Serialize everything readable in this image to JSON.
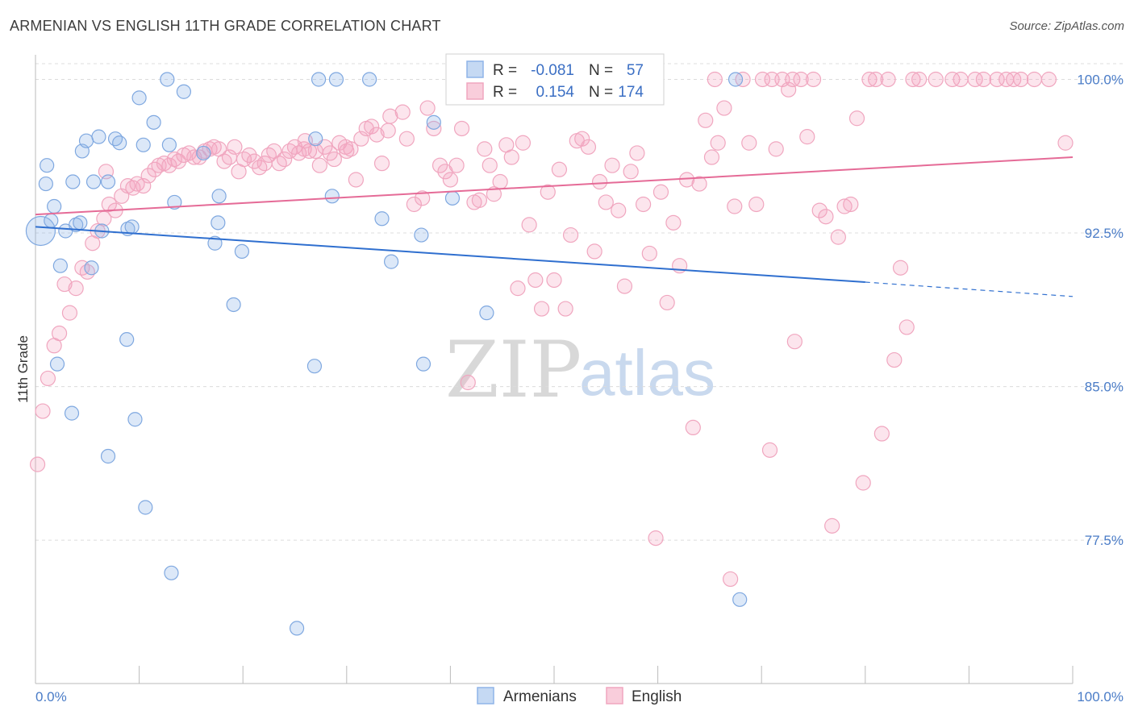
{
  "header": {
    "title": "ARMENIAN VS ENGLISH 11TH GRADE CORRELATION CHART",
    "source": "Source: ZipAtlas.com"
  },
  "watermark": {
    "zip": "ZIP",
    "atlas": "atlas"
  },
  "legend": {
    "r_label": "R =",
    "n_label": "N =",
    "rows": [
      {
        "series": "Armenians",
        "r": "-0.081",
        "n": "57",
        "color": "#8fb4e8"
      },
      {
        "series": "English",
        "r": "0.154",
        "n": "174",
        "color": "#f0a6bf"
      }
    ]
  },
  "bottom_legend": [
    {
      "label": "Armenians",
      "color": "#8fb4e8"
    },
    {
      "label": "English",
      "color": "#f0a6bf"
    }
  ],
  "chart_data": {
    "type": "scatter",
    "title": "ARMENIAN VS ENGLISH 11TH GRADE CORRELATION CHART",
    "xlabel": "",
    "ylabel": "11th Grade",
    "xlim": [
      0,
      100
    ],
    "ylim": [
      70.5,
      101.2
    ],
    "x_tick_labels": [
      "0.0%",
      "100.0%"
    ],
    "y_ticks": [
      77.5,
      85.0,
      92.5,
      100.0
    ],
    "y_tick_labels": [
      "77.5%",
      "85.0%",
      "92.5%",
      "100.0%"
    ],
    "grid": true,
    "series": [
      {
        "name": "Armenians",
        "color": "#6f9fe0",
        "trend": {
          "x0": 0,
          "y0": 92.8,
          "x1": 80,
          "y1": 90.1,
          "dash_to_x": 100,
          "dash_to_y": 89.4
        },
        "points": [
          [
            0.5,
            92.6
          ],
          [
            1.0,
            94.9
          ],
          [
            1.1,
            95.8
          ],
          [
            1.5,
            93.1
          ],
          [
            1.8,
            93.8
          ],
          [
            2.1,
            86.1
          ],
          [
            2.4,
            90.9
          ],
          [
            2.9,
            92.6
          ],
          [
            3.5,
            83.7
          ],
          [
            3.6,
            95.0
          ],
          [
            3.9,
            92.9
          ],
          [
            4.3,
            93.0
          ],
          [
            4.5,
            96.5
          ],
          [
            4.9,
            97.0
          ],
          [
            5.4,
            90.8
          ],
          [
            5.6,
            95.0
          ],
          [
            6.1,
            97.2
          ],
          [
            6.4,
            92.6
          ],
          [
            7.0,
            81.6
          ],
          [
            7.0,
            95.0
          ],
          [
            7.7,
            97.1
          ],
          [
            8.1,
            96.9
          ],
          [
            8.8,
            87.3
          ],
          [
            8.9,
            92.7
          ],
          [
            9.3,
            92.8
          ],
          [
            9.6,
            83.4
          ],
          [
            10.0,
            99.1
          ],
          [
            10.4,
            96.8
          ],
          [
            10.6,
            79.1
          ],
          [
            11.4,
            97.9
          ],
          [
            12.7,
            100.0
          ],
          [
            12.9,
            96.8
          ],
          [
            13.1,
            75.9
          ],
          [
            13.4,
            94.0
          ],
          [
            14.3,
            99.4
          ],
          [
            16.2,
            96.4
          ],
          [
            17.3,
            92.0
          ],
          [
            17.6,
            93.0
          ],
          [
            17.7,
            94.3
          ],
          [
            19.1,
            89.0
          ],
          [
            19.9,
            91.6
          ],
          [
            25.2,
            73.2
          ],
          [
            26.9,
            86.0
          ],
          [
            27.0,
            97.1
          ],
          [
            27.3,
            100.0
          ],
          [
            29.0,
            100.0
          ],
          [
            28.6,
            94.3
          ],
          [
            32.2,
            100.0
          ],
          [
            33.4,
            93.2
          ],
          [
            34.3,
            91.1
          ],
          [
            37.2,
            92.4
          ],
          [
            37.4,
            86.1
          ],
          [
            38.4,
            97.9
          ],
          [
            40.2,
            94.2
          ],
          [
            43.5,
            88.6
          ],
          [
            67.5,
            100.0
          ],
          [
            67.9,
            74.6
          ]
        ]
      },
      {
        "name": "English",
        "color": "#f08fb0",
        "trend": {
          "x0": 0,
          "y0": 93.4,
          "x1": 100,
          "y1": 96.2
        },
        "points": [
          [
            0.2,
            81.2
          ],
          [
            0.7,
            83.8
          ],
          [
            1.2,
            85.4
          ],
          [
            1.8,
            87.0
          ],
          [
            2.3,
            87.6
          ],
          [
            2.8,
            90.0
          ],
          [
            3.3,
            88.6
          ],
          [
            3.9,
            89.8
          ],
          [
            4.5,
            90.8
          ],
          [
            5.0,
            90.6
          ],
          [
            5.5,
            92.0
          ],
          [
            6.0,
            92.6
          ],
          [
            6.6,
            93.2
          ],
          [
            7.1,
            93.9
          ],
          [
            7.7,
            93.6
          ],
          [
            8.3,
            94.3
          ],
          [
            8.9,
            94.8
          ],
          [
            9.4,
            94.7
          ],
          [
            9.8,
            94.9
          ],
          [
            10.4,
            94.8
          ],
          [
            10.9,
            95.3
          ],
          [
            11.5,
            95.6
          ],
          [
            11.9,
            95.8
          ],
          [
            12.4,
            95.9
          ],
          [
            12.9,
            95.8
          ],
          [
            13.4,
            96.1
          ],
          [
            13.8,
            96.0
          ],
          [
            14.3,
            96.3
          ],
          [
            14.8,
            96.4
          ],
          [
            15.3,
            96.2
          ],
          [
            15.8,
            96.2
          ],
          [
            16.3,
            96.5
          ],
          [
            16.8,
            96.6
          ],
          [
            17.2,
            96.7
          ],
          [
            17.7,
            96.6
          ],
          [
            18.2,
            96.0
          ],
          [
            18.7,
            96.2
          ],
          [
            19.2,
            96.7
          ],
          [
            19.6,
            95.5
          ],
          [
            20.1,
            96.1
          ],
          [
            20.6,
            96.3
          ],
          [
            21.1,
            96.0
          ],
          [
            21.6,
            95.7
          ],
          [
            22.1,
            95.9
          ],
          [
            22.5,
            96.3
          ],
          [
            23.0,
            96.5
          ],
          [
            23.5,
            95.9
          ],
          [
            24.0,
            96.1
          ],
          [
            24.5,
            96.5
          ],
          [
            25.0,
            96.7
          ],
          [
            25.4,
            96.4
          ],
          [
            25.9,
            96.6
          ],
          [
            26.4,
            96.5
          ],
          [
            27.0,
            96.5
          ],
          [
            27.4,
            95.8
          ],
          [
            27.9,
            96.7
          ],
          [
            28.4,
            96.4
          ],
          [
            28.8,
            96.1
          ],
          [
            29.3,
            96.9
          ],
          [
            29.9,
            96.7
          ],
          [
            30.4,
            96.6
          ],
          [
            30.9,
            95.1
          ],
          [
            31.4,
            97.1
          ],
          [
            31.9,
            97.6
          ],
          [
            32.4,
            97.7
          ],
          [
            32.9,
            97.3
          ],
          [
            33.4,
            95.9
          ],
          [
            34.0,
            97.5
          ],
          [
            34.2,
            98.2
          ],
          [
            35.4,
            98.4
          ],
          [
            35.8,
            97.1
          ],
          [
            36.5,
            93.9
          ],
          [
            37.3,
            94.2
          ],
          [
            37.8,
            98.6
          ],
          [
            38.4,
            97.6
          ],
          [
            39.0,
            95.8
          ],
          [
            39.5,
            95.5
          ],
          [
            40.0,
            95.1
          ],
          [
            40.6,
            95.8
          ],
          [
            41.1,
            97.6
          ],
          [
            41.7,
            85.2
          ],
          [
            42.3,
            94.0
          ],
          [
            42.8,
            94.1
          ],
          [
            43.3,
            96.6
          ],
          [
            43.8,
            95.8
          ],
          [
            44.2,
            94.4
          ],
          [
            44.8,
            95.0
          ],
          [
            45.4,
            96.8
          ],
          [
            45.9,
            96.2
          ],
          [
            46.5,
            89.8
          ],
          [
            47.0,
            96.9
          ],
          [
            47.6,
            92.9
          ],
          [
            48.2,
            90.2
          ],
          [
            48.8,
            88.8
          ],
          [
            49.4,
            94.5
          ],
          [
            50.0,
            90.2
          ],
          [
            50.5,
            95.6
          ],
          [
            51.1,
            88.8
          ],
          [
            51.6,
            92.4
          ],
          [
            52.2,
            97.0
          ],
          [
            52.7,
            97.1
          ],
          [
            53.3,
            96.7
          ],
          [
            53.9,
            91.6
          ],
          [
            54.4,
            95.0
          ],
          [
            55.0,
            94.0
          ],
          [
            55.6,
            95.8
          ],
          [
            56.2,
            93.6
          ],
          [
            56.8,
            89.9
          ],
          [
            57.4,
            95.5
          ],
          [
            58.0,
            96.4
          ],
          [
            58.6,
            93.9
          ],
          [
            59.2,
            91.5
          ],
          [
            59.8,
            77.6
          ],
          [
            60.3,
            94.5
          ],
          [
            60.9,
            89.1
          ],
          [
            61.5,
            93.0
          ],
          [
            62.1,
            90.9
          ],
          [
            62.8,
            95.1
          ],
          [
            63.4,
            83.0
          ],
          [
            64.0,
            94.9
          ],
          [
            64.6,
            98.0
          ],
          [
            65.2,
            96.2
          ],
          [
            65.8,
            96.9
          ],
          [
            66.4,
            98.6
          ],
          [
            67.0,
            75.6
          ],
          [
            67.4,
            93.8
          ],
          [
            68.2,
            100.0
          ],
          [
            68.8,
            96.9
          ],
          [
            69.5,
            93.9
          ],
          [
            70.1,
            100.0
          ],
          [
            70.8,
            81.9
          ],
          [
            71.4,
            96.6
          ],
          [
            72.0,
            100.0
          ],
          [
            72.6,
            99.5
          ],
          [
            73.2,
            87.2
          ],
          [
            73.8,
            100.0
          ],
          [
            74.4,
            97.2
          ],
          [
            75.0,
            100.0
          ],
          [
            75.6,
            93.6
          ],
          [
            76.2,
            93.3
          ],
          [
            76.8,
            78.2
          ],
          [
            77.4,
            92.3
          ],
          [
            78.0,
            93.8
          ],
          [
            78.6,
            93.9
          ],
          [
            79.2,
            98.1
          ],
          [
            79.8,
            80.3
          ],
          [
            80.4,
            100.0
          ],
          [
            81.0,
            100.0
          ],
          [
            81.6,
            82.7
          ],
          [
            82.2,
            100.0
          ],
          [
            82.8,
            86.3
          ],
          [
            83.4,
            90.8
          ],
          [
            84.0,
            87.9
          ],
          [
            84.6,
            100.0
          ],
          [
            85.2,
            100.0
          ],
          [
            86.8,
            100.0
          ],
          [
            88.4,
            100.0
          ],
          [
            89.2,
            100.0
          ],
          [
            90.6,
            100.0
          ],
          [
            91.4,
            100.0
          ],
          [
            92.7,
            100.0
          ],
          [
            93.6,
            100.0
          ],
          [
            94.3,
            100.0
          ],
          [
            95.0,
            100.0
          ],
          [
            96.3,
            100.0
          ],
          [
            97.7,
            100.0
          ],
          [
            99.3,
            96.9
          ],
          [
            65.5,
            100.0
          ],
          [
            71.0,
            100.0
          ],
          [
            73.0,
            100.0
          ],
          [
            57.1,
            99.6
          ],
          [
            30.0,
            96.5
          ],
          [
            26.0,
            97.0
          ],
          [
            6.8,
            95.5
          ]
        ]
      }
    ]
  }
}
